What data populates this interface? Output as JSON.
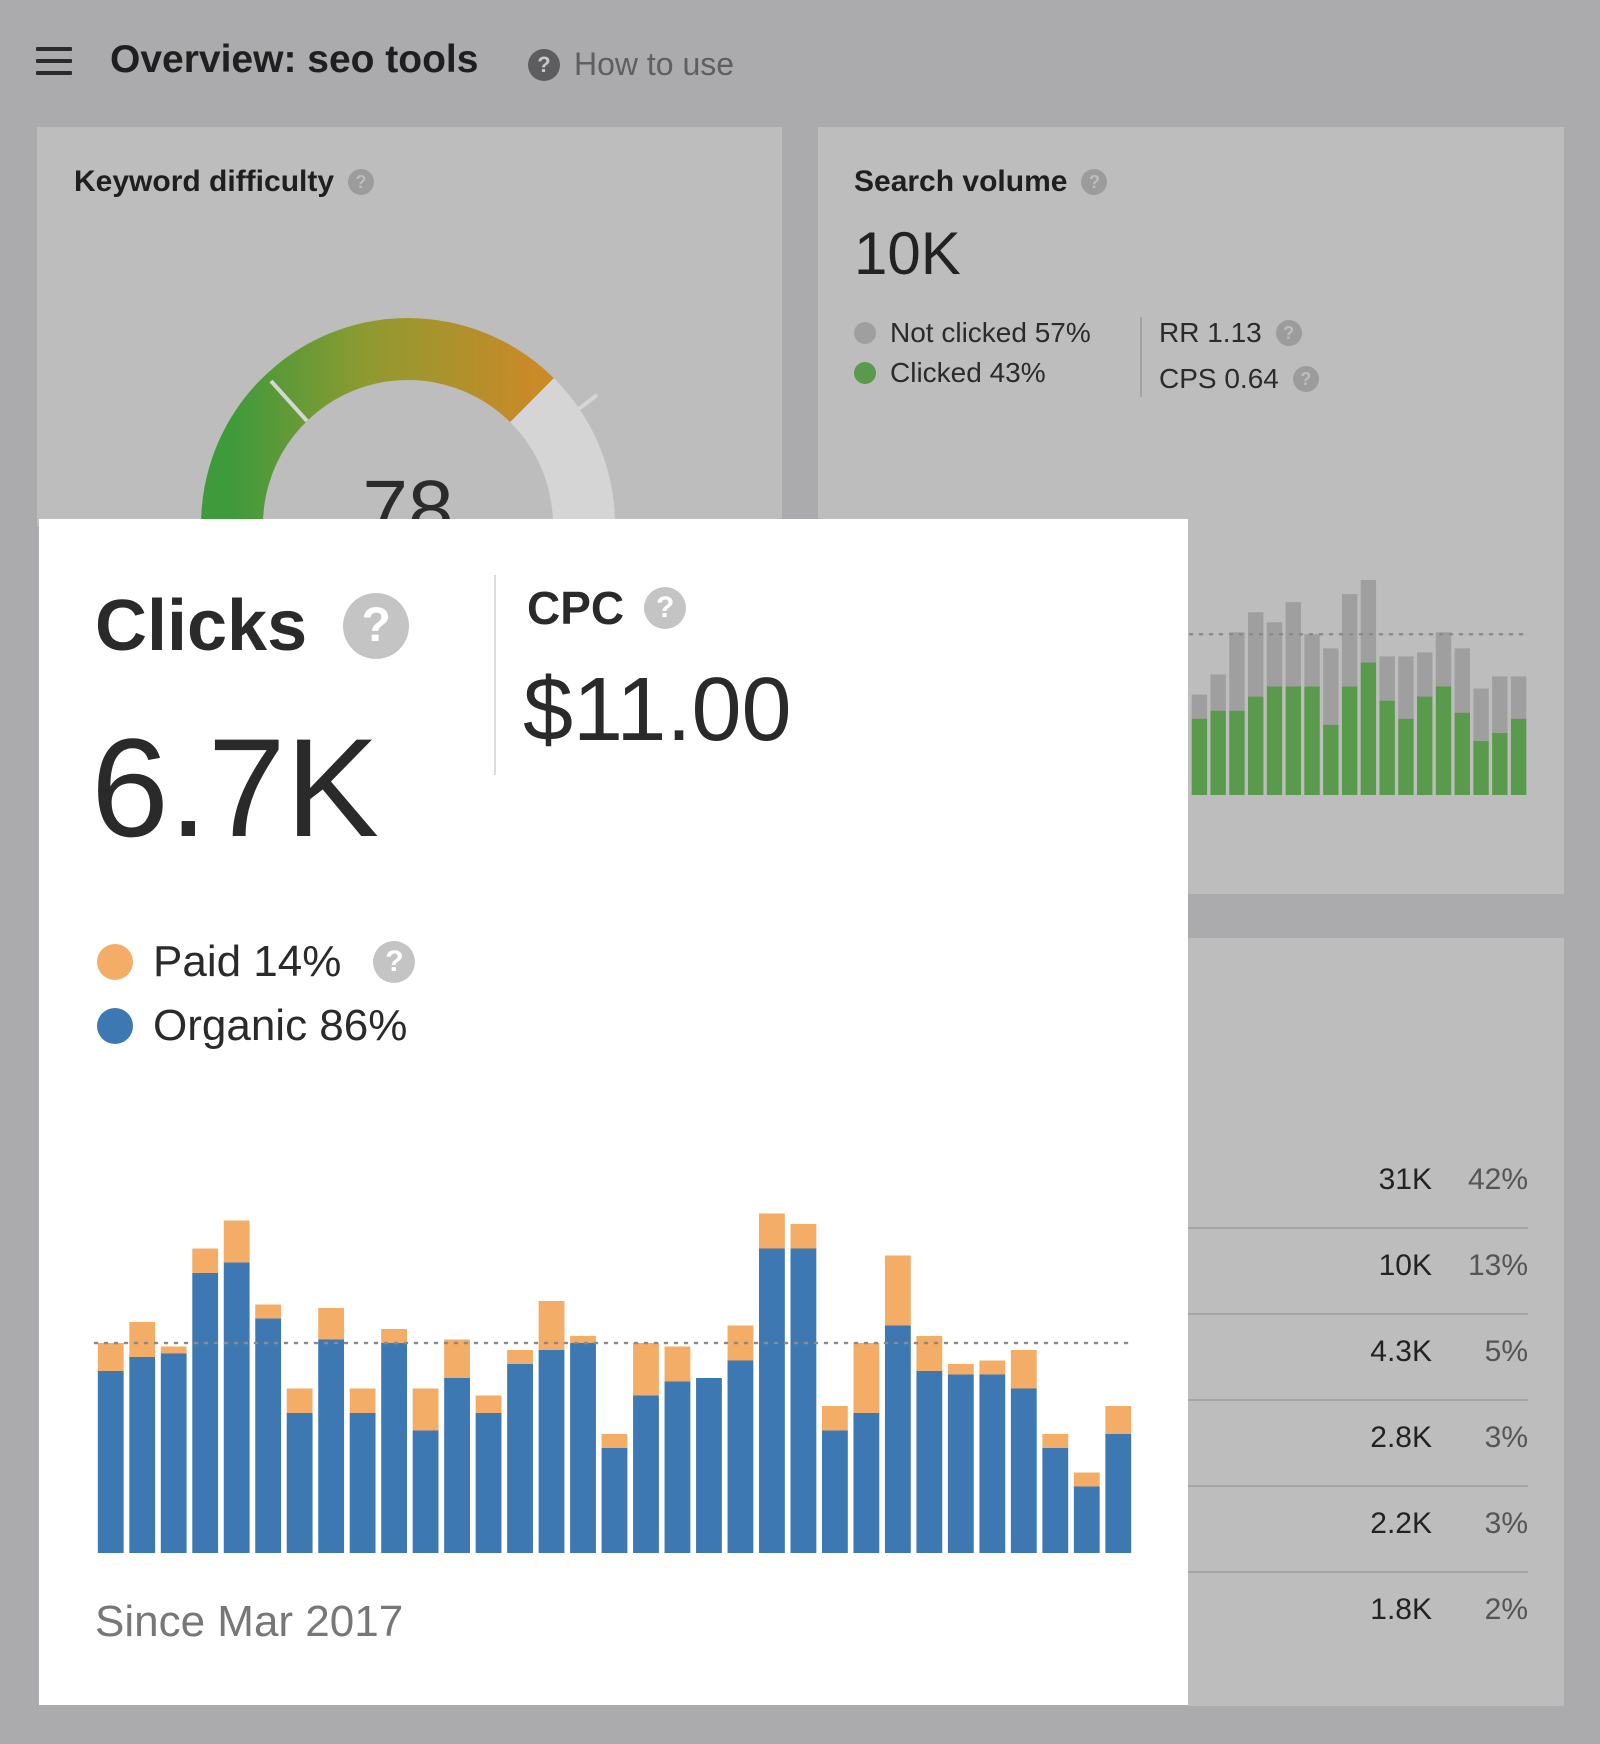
{
  "header": {
    "title": "Overview: seo tools",
    "help_label": "How to use",
    "help_icon": "?"
  },
  "keyword_difficulty": {
    "title": "Keyword difficulty",
    "value": "78",
    "help_icon": "?",
    "gauge_fraction": 0.78,
    "colors": [
      "#3f9a3c",
      "#8f9a30",
      "#c98a28",
      "#d5d5d5"
    ]
  },
  "search_volume": {
    "title": "Search volume",
    "value": "10K",
    "not_clicked": "Not clicked 57%",
    "clicked": "Clicked 43%",
    "rr": "RR 1.13",
    "cps": "CPS 0.64",
    "colors": {
      "not_clicked": "#9f9f9f",
      "clicked": "#5a9a4c"
    }
  },
  "metrics_rows": [
    {
      "value": "31K",
      "pct": "42%"
    },
    {
      "value": "10K",
      "pct": "13%"
    },
    {
      "value": "4.3K",
      "pct": "5%"
    },
    {
      "value": "2.8K",
      "pct": "3%"
    },
    {
      "value": "2.2K",
      "pct": "3%"
    },
    {
      "value": "1.8K",
      "pct": "2%"
    }
  ],
  "clicks": {
    "title": "Clicks",
    "value": "6.7K",
    "cpc_title": "CPC",
    "cpc_value": "$11.00",
    "paid_label": "Paid 14%",
    "organic_label": "Organic 86%",
    "since": "Since Mar 2017",
    "colors": {
      "paid": "#f3ad67",
      "organic": "#3d78b3"
    }
  },
  "chart_data": [
    {
      "type": "bar",
      "stacked": true,
      "description_source": "Clicks card stacked bars",
      "series": [
        {
          "name": "Organic",
          "values": [
            52,
            56,
            57,
            80,
            83,
            67,
            40,
            61,
            40,
            60,
            35,
            50,
            40,
            54,
            58,
            60,
            30,
            45,
            49,
            50,
            55,
            87,
            87,
            35,
            40,
            65,
            52,
            51,
            51,
            47,
            30,
            19,
            34
          ]
        },
        {
          "name": "Paid",
          "values": [
            8,
            10,
            2,
            7,
            12,
            4,
            7,
            9,
            7,
            4,
            12,
            11,
            5,
            4,
            14,
            2,
            4,
            15,
            10,
            0,
            10,
            10,
            7,
            7,
            20,
            20,
            10,
            3,
            4,
            11,
            4,
            4,
            8
          ]
        }
      ],
      "ylim": [
        0,
        100
      ],
      "reference_line": 60
    },
    {
      "type": "bar",
      "stacked": true,
      "description_source": "Search volume card stacked bars (partially visible)",
      "series": [
        {
          "name": "Clicked",
          "values": [
            38,
            42,
            42,
            49,
            54,
            54,
            54,
            35,
            54,
            66,
            47,
            38,
            49,
            54,
            41,
            27,
            31,
            38
          ]
        },
        {
          "name": "Not clicked",
          "values": [
            12,
            18,
            39,
            42,
            32,
            42,
            26,
            38,
            46,
            41,
            22,
            31,
            22,
            27,
            32,
            26,
            28,
            21
          ]
        }
      ],
      "ylim": [
        0,
        110
      ],
      "reference_line": 80
    }
  ]
}
